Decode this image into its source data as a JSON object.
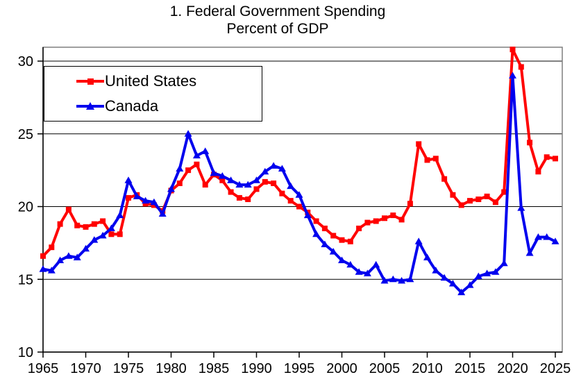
{
  "chart_data": {
    "type": "line",
    "title": "1. Federal Government Spending",
    "subtitle": "Percent of GDP",
    "xlabel": "",
    "ylabel": "",
    "grid": true,
    "legend_position": "top-left-inside",
    "xlim": [
      1965,
      2025
    ],
    "ylim": [
      10,
      31
    ],
    "yticks": [
      10,
      15,
      20,
      25,
      30
    ],
    "xticks": [
      1965,
      1970,
      1975,
      1980,
      1985,
      1990,
      1995,
      2000,
      2005,
      2010,
      2015,
      2020,
      2025
    ],
    "x": [
      1965,
      1966,
      1967,
      1968,
      1969,
      1970,
      1971,
      1972,
      1973,
      1974,
      1975,
      1976,
      1977,
      1978,
      1979,
      1980,
      1981,
      1982,
      1983,
      1984,
      1985,
      1986,
      1987,
      1988,
      1989,
      1990,
      1991,
      1992,
      1993,
      1994,
      1995,
      1996,
      1997,
      1998,
      1999,
      2000,
      2001,
      2002,
      2003,
      2004,
      2005,
      2006,
      2007,
      2008,
      2009,
      2010,
      2011,
      2012,
      2013,
      2014,
      2015,
      2016,
      2017,
      2018,
      2019,
      2020,
      2021,
      2022,
      2023,
      2024,
      2025
    ],
    "series": [
      {
        "name": "United States",
        "color": "#ff0000",
        "marker": "square",
        "values": [
          16.6,
          17.2,
          18.8,
          19.8,
          18.7,
          18.6,
          18.8,
          19.0,
          18.1,
          18.1,
          20.6,
          20.8,
          20.2,
          20.1,
          19.7,
          21.1,
          21.6,
          22.5,
          22.9,
          21.5,
          22.2,
          21.8,
          21.0,
          20.6,
          20.5,
          21.2,
          21.7,
          21.6,
          20.9,
          20.4,
          20.0,
          19.6,
          19.0,
          18.5,
          18.0,
          17.7,
          17.6,
          18.5,
          18.9,
          19.0,
          19.2,
          19.4,
          19.1,
          20.2,
          24.3,
          23.2,
          23.3,
          21.9,
          20.8,
          20.1,
          20.4,
          20.5,
          20.7,
          20.3,
          21.0,
          30.8,
          29.6,
          24.4,
          22.4,
          23.4,
          23.3
        ]
      },
      {
        "name": "Canada",
        "color": "#0000ee",
        "marker": "triangle",
        "values": [
          15.7,
          15.6,
          16.3,
          16.6,
          16.5,
          17.1,
          17.7,
          18.0,
          18.5,
          19.4,
          21.8,
          20.7,
          20.4,
          20.3,
          19.5,
          21.2,
          22.6,
          25.0,
          23.5,
          23.8,
          22.3,
          22.1,
          21.8,
          21.5,
          21.5,
          21.8,
          22.4,
          22.8,
          22.6,
          21.4,
          20.8,
          19.4,
          18.1,
          17.4,
          16.9,
          16.3,
          16.0,
          15.5,
          15.4,
          16.0,
          14.9,
          15.0,
          14.9,
          15.0,
          17.6,
          16.5,
          15.6,
          15.1,
          14.7,
          14.1,
          14.6,
          15.2,
          15.4,
          15.5,
          16.1,
          29.0,
          19.9,
          16.8,
          17.9,
          17.9,
          17.6
        ]
      }
    ],
    "frame_color": "#7f7f7f",
    "axis_color": "#000000",
    "gridline_color": "#000000"
  },
  "legend": {
    "items": [
      {
        "label": "United States"
      },
      {
        "label": "Canada"
      }
    ]
  }
}
